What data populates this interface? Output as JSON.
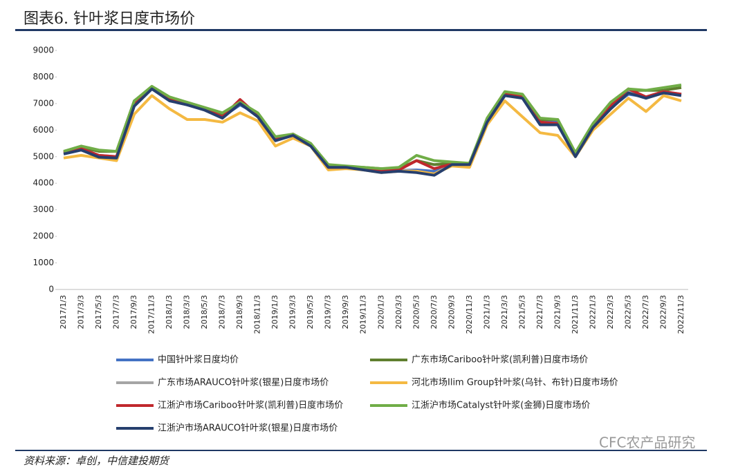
{
  "title": "图表6.    针叶浆日度市场价",
  "source": "资料来源：卓创，中信建投期货",
  "watermark": "CFC农产品研究",
  "chart_data": {
    "type": "line",
    "categories": [
      "2017/1/3",
      "2017/3/3",
      "2017/5/3",
      "2017/7/3",
      "2017/9/3",
      "2017/11/3",
      "2018/1/3",
      "2018/3/3",
      "2018/5/3",
      "2018/7/3",
      "2018/9/3",
      "2018/11/3",
      "2019/1/3",
      "2019/3/3",
      "2019/5/3",
      "2019/7/3",
      "2019/9/3",
      "2019/11/3",
      "2020/1/3",
      "2020/3/3",
      "2020/5/3",
      "2020/7/3",
      "2020/9/3",
      "2020/11/3",
      "2021/1/3",
      "2021/3/3",
      "2021/5/3",
      "2021/7/3",
      "2021/9/3",
      "2021/11/3",
      "2022/1/3",
      "2022/3/3",
      "2022/5/3",
      "2022/7/3",
      "2022/9/3",
      "2022/11/3"
    ],
    "ylim": [
      0,
      9000
    ],
    "yticks": [
      0,
      1000,
      2000,
      3000,
      4000,
      5000,
      6000,
      7000,
      8000,
      9000
    ],
    "series": [
      {
        "name": "中国针叶浆日度均价",
        "color": "#4472c4",
        "values": [
          5150,
          5250,
          5000,
          4980,
          6950,
          7550,
          7150,
          6950,
          6800,
          6500,
          6950,
          6600,
          5650,
          5800,
          5450,
          4620,
          4600,
          4520,
          4420,
          4480,
          4500,
          4450,
          4720,
          4720,
          6350,
          7300,
          7250,
          6350,
          6300,
          5100,
          6150,
          6850,
          7350,
          7250,
          7400,
          7350
        ]
      },
      {
        "name": "广东市场Cariboo针叶浆(凯利普)日度市场价",
        "color": "#5f7f2f",
        "values": [
          5200,
          5350,
          5200,
          5200,
          7100,
          7600,
          7200,
          7000,
          6800,
          6600,
          7050,
          6600,
          5700,
          5850,
          5500,
          4650,
          4600,
          4600,
          4550,
          4550,
          4850,
          4700,
          4750,
          4750,
          6400,
          7400,
          7300,
          6400,
          6400,
          5100,
          6200,
          7000,
          7500,
          7500,
          7500,
          7600
        ]
      },
      {
        "name": "广东市场ARAUCO针叶浆(银星)日度市场价",
        "color": "#a5a5a5",
        "values": [
          5150,
          5300,
          5050,
          5000,
          7000,
          7600,
          7150,
          7000,
          6800,
          6500,
          7050,
          6550,
          5650,
          5850,
          5450,
          4600,
          4600,
          4550,
          4450,
          4500,
          4450,
          4350,
          4720,
          4720,
          6350,
          7350,
          7250,
          6300,
          6250,
          5050,
          6150,
          6900,
          7450,
          7250,
          7450,
          7350
        ]
      },
      {
        "name": "河北市场Ilim Group针叶浆(乌针、布针)日度市场价",
        "color": "#f4b942",
        "values": [
          4950,
          5050,
          4950,
          4850,
          6600,
          7300,
          6800,
          6400,
          6400,
          6300,
          6650,
          6350,
          5400,
          5700,
          5400,
          4500,
          4550,
          4500,
          4400,
          4450,
          4450,
          4350,
          4650,
          4600,
          6200,
          7100,
          6500,
          5900,
          5800,
          5000,
          6000,
          6600,
          7200,
          6700,
          7300,
          7100
        ]
      },
      {
        "name": "江浙沪市场Cariboo针叶浆(凯利普)日度市场价",
        "color": "#c0282d",
        "values": [
          5150,
          5300,
          5050,
          5000,
          7000,
          7600,
          7150,
          7000,
          6800,
          6500,
          7150,
          6550,
          5650,
          5850,
          5450,
          4600,
          4600,
          4550,
          4450,
          4500,
          4850,
          4550,
          4720,
          4720,
          6350,
          7350,
          7250,
          6300,
          6250,
          5050,
          6150,
          6900,
          7550,
          7250,
          7450,
          7350
        ]
      },
      {
        "name": "江浙沪市场Catalyst针叶浆(金狮)日度市场价",
        "color": "#70ad47",
        "values": [
          5200,
          5400,
          5250,
          5200,
          7100,
          7650,
          7250,
          7050,
          6850,
          6650,
          7050,
          6650,
          5750,
          5850,
          5500,
          4700,
          4650,
          4600,
          4550,
          4600,
          5050,
          4850,
          4800,
          4750,
          6450,
          7450,
          7350,
          6450,
          6400,
          5150,
          6250,
          7050,
          7550,
          7500,
          7600,
          7700
        ]
      },
      {
        "name": "江浙沪市场ARAUCO针叶浆(银星)日度市场价",
        "color": "#263f6e",
        "values": [
          5100,
          5250,
          4980,
          4950,
          6900,
          7550,
          7100,
          6950,
          6750,
          6450,
          7000,
          6500,
          5600,
          5800,
          5400,
          4600,
          4600,
          4500,
          4400,
          4450,
          4400,
          4300,
          4700,
          4700,
          6300,
          7300,
          7200,
          6200,
          6200,
          5000,
          6100,
          6800,
          7400,
          7200,
          7400,
          7300
        ]
      }
    ]
  }
}
